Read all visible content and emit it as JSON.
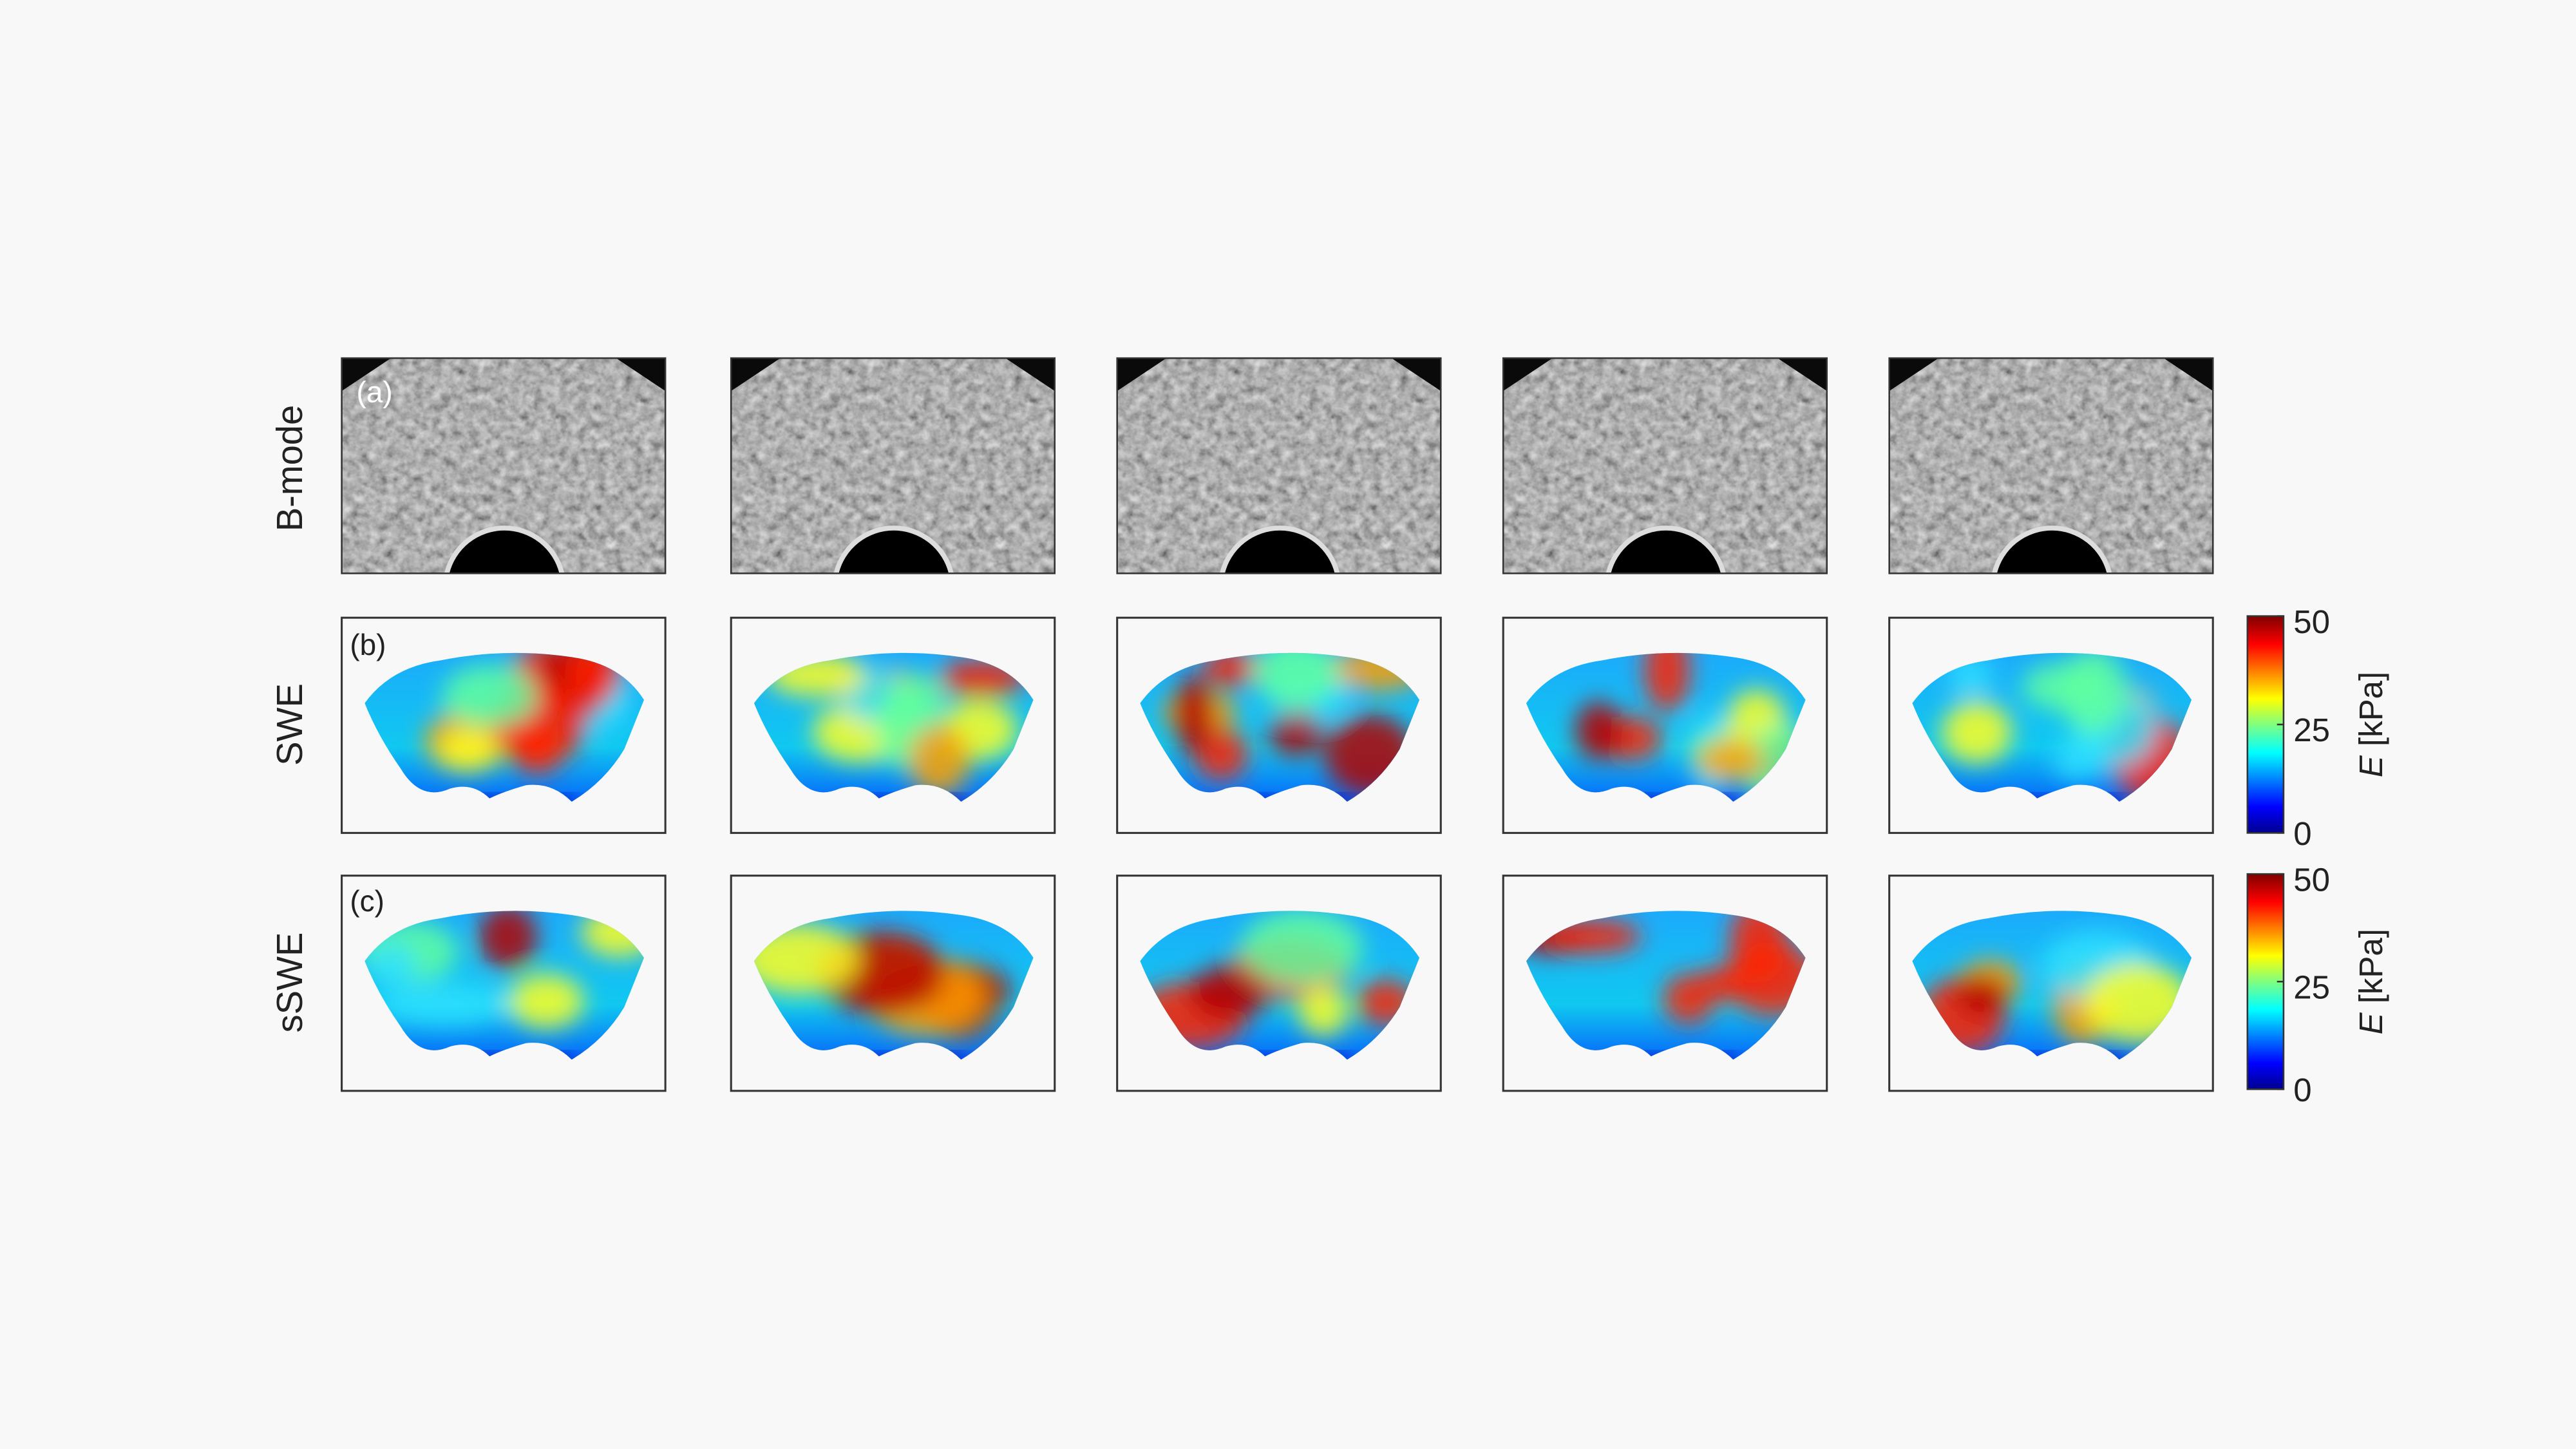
{
  "row_labels": [
    "B-mode",
    "SWE",
    "sSWE"
  ],
  "panel_labels": [
    "(a)",
    "(b)",
    "(c)"
  ],
  "colorbars": [
    {
      "range": [
        0,
        50
      ],
      "ticks": [
        0,
        25,
        50
      ],
      "label": {
        "symbol": "E",
        "unit": "[kPa]"
      }
    },
    {
      "range": [
        0,
        50
      ],
      "ticks": [
        0,
        25,
        50
      ],
      "label": {
        "symbol": "E",
        "unit": "[kPa]"
      }
    }
  ]
}
